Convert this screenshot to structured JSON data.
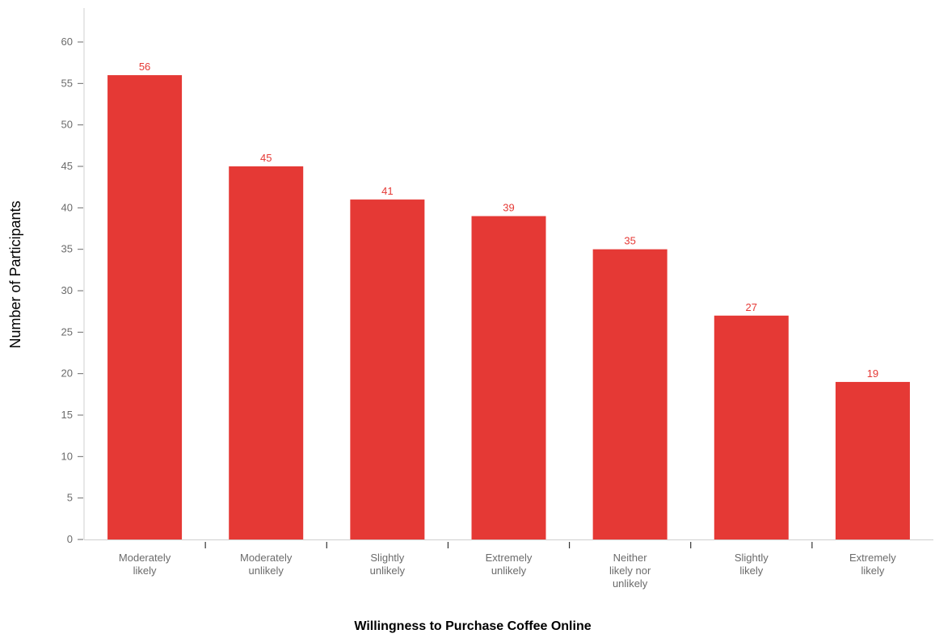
{
  "chart_data": {
    "type": "bar",
    "categories": [
      [
        "Moderately",
        "likely"
      ],
      [
        "Moderately",
        "unlikely"
      ],
      [
        "Slightly",
        "unlikely"
      ],
      [
        "Extremely",
        "unlikely"
      ],
      [
        "Neither",
        "likely nor",
        "unlikely"
      ],
      [
        "Slightly",
        "likely"
      ],
      [
        "Extremely",
        "likely"
      ]
    ],
    "values": [
      56,
      45,
      41,
      39,
      35,
      27,
      19
    ],
    "xlabel": "Willingness to Purchase Coffee Online",
    "ylabel": "Number of Participants",
    "ylim": [
      0,
      60
    ],
    "yticks": [
      0,
      5,
      10,
      15,
      20,
      25,
      30,
      35,
      40,
      45,
      50,
      55,
      60
    ],
    "bar_color": "#e53935",
    "value_label_color": "#e53935",
    "grid": false,
    "legend": "none"
  }
}
